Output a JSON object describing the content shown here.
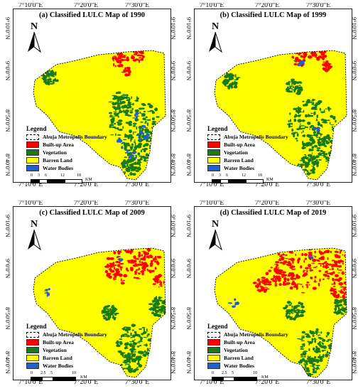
{
  "colors": {
    "built_up": "#ff0000",
    "vegetation": "#1a7a1a",
    "barren": "#ffff00",
    "water": "#1f5fd6"
  },
  "coords": {
    "lon_labels": [
      "7°10'0\"E",
      "7°20'0\"E",
      "7°30'0\"E"
    ],
    "lat_labels": [
      "9°10'0\"N",
      "9°0'0\"N",
      "8°50'0\"N",
      "8°40'0\"N"
    ]
  },
  "north_label": "N",
  "legend": {
    "title": "Legend",
    "items": [
      {
        "label": "Abuja Metropolis Boundary",
        "type": "boundary"
      },
      {
        "label": "Built-up Area",
        "type": "built_up"
      },
      {
        "label": "Vegetation",
        "type": "vegetation"
      },
      {
        "label": "Barren Land",
        "type": "barren"
      },
      {
        "label": "Water Bodies",
        "type": "water"
      }
    ]
  },
  "scalebar": {
    "ticks": [
      "0",
      "3",
      "6",
      "12",
      "18"
    ],
    "unit": "KM",
    "ticks_alt": [
      "0",
      "2.5",
      "5",
      "10"
    ]
  },
  "panels": [
    {
      "id": "a",
      "title": "(a) Classified LULC Map of 1990",
      "year": 1990,
      "composition": {
        "built_up": "low",
        "vegetation": "high",
        "barren": "dominant",
        "water": "medium"
      }
    },
    {
      "id": "b",
      "title": "(b) Classified LULC Map of 1999",
      "year": 1999,
      "composition": {
        "built_up": "low",
        "vegetation": "high",
        "barren": "dominant",
        "water": "low"
      }
    },
    {
      "id": "c",
      "title": "(c) Classified LULC Map of 2009",
      "year": 2009,
      "composition": {
        "built_up": "medium",
        "vegetation": "medium",
        "barren": "dominant",
        "water": "low"
      }
    },
    {
      "id": "d",
      "title": "(d) Classified LULC Map of 2019",
      "year": 2019,
      "composition": {
        "built_up": "high",
        "vegetation": "medium",
        "barren": "dominant",
        "water": "low"
      }
    }
  ]
}
